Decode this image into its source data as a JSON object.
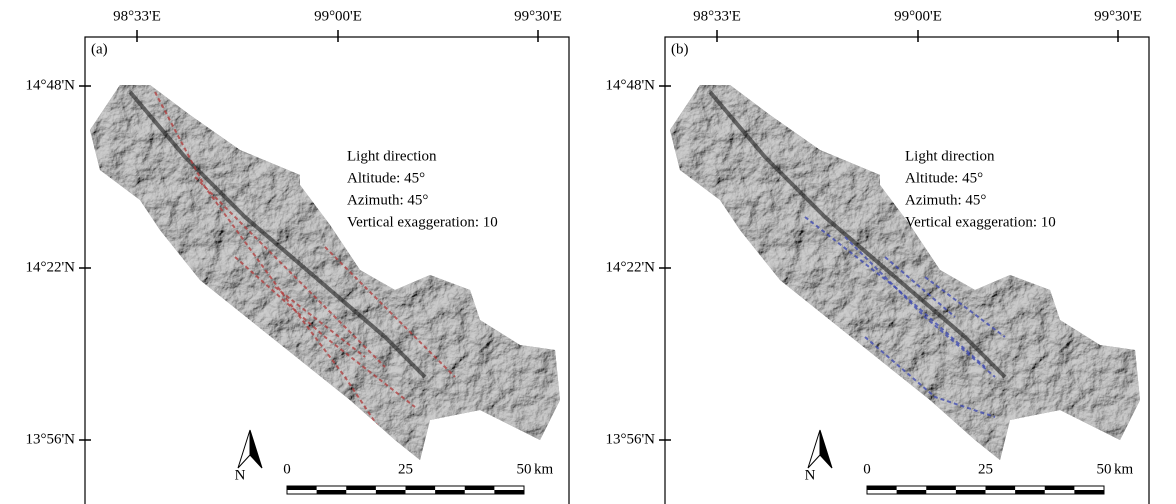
{
  "panels": [
    {
      "label": "(a)",
      "lon_ticks": [
        "98°33'E",
        "99°00'E",
        "99°30'E"
      ],
      "lat_ticks": [
        "14°48'N",
        "14°22'N",
        "13°56'N"
      ],
      "legend": [
        "Light direction",
        "Altitude: 45°",
        "Azimuth: 45°",
        "Vertical exaggeration: 10"
      ],
      "north": "N",
      "scale": [
        0,
        25,
        50
      ],
      "scale_unit": "km"
    },
    {
      "label": "(b)",
      "lon_ticks": [
        "98°33'E",
        "99°00'E",
        "99°30'E"
      ],
      "lat_ticks": [
        "14°48'N",
        "14°22'N",
        "13°56'N"
      ],
      "legend": [
        "Light direction",
        "Altitude: 45°",
        "Azimuth: 45°",
        "Vertical exaggeration: 10"
      ],
      "north": "N",
      "scale": [
        0,
        25,
        50
      ],
      "scale_unit": "km"
    }
  ]
}
